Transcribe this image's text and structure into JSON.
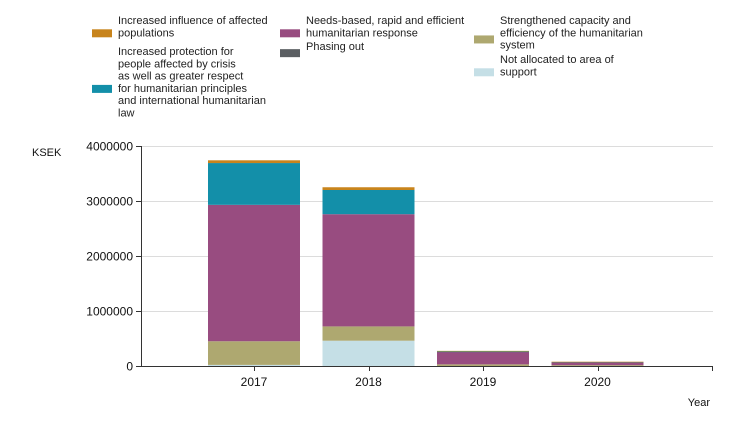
{
  "chart_data": {
    "type": "bar",
    "stacked": true,
    "categories": [
      "2017",
      "2018",
      "2019",
      "2020"
    ],
    "ylabel": "KSEK",
    "xlabel": "Year",
    "ylim": [
      0,
      4000000
    ],
    "yticks": [
      0,
      1000000,
      2000000,
      3000000,
      4000000
    ],
    "ytick_labels": [
      "0",
      "1000000",
      "2000000",
      "3000000",
      "4000000"
    ],
    "grid": true,
    "legend_position": "top",
    "series": [
      {
        "name": "Not allocated to area of support",
        "color": "#c5dfe6",
        "values": [
          20000,
          460000,
          0,
          0
        ]
      },
      {
        "name": "Strengthened capacity and efficiency of the humanitarian system",
        "color": "#aea870",
        "values": [
          430000,
          260000,
          30000,
          15000
        ]
      },
      {
        "name": "Phasing out",
        "color": "#5b5e62",
        "values": [
          0,
          0,
          0,
          0
        ]
      },
      {
        "name": "Needs-based, rapid and efficient humanitarian response",
        "color": "#984c80",
        "values": [
          2480000,
          2040000,
          225000,
          55000
        ]
      },
      {
        "name": "Increased protection for people affected by crisis as well as greater respect for humanitarian principles and international humanitarian law",
        "color": "#138fa9",
        "values": [
          760000,
          440000,
          8000,
          3000
        ]
      },
      {
        "name": "Increased influence of affected populations",
        "color": "#c8841c",
        "values": [
          50000,
          50000,
          12000,
          5000
        ]
      }
    ],
    "legend": [
      {
        "label_lines": [
          "Increased influence of affected",
          "populations"
        ],
        "color": "#c8841c"
      },
      {
        "label_lines": [
          "Increased protection for",
          "people affected by crisis",
          "as well as greater respect",
          "for humanitarian principles",
          "and international humanitarian",
          "law"
        ],
        "color": "#138fa9"
      },
      {
        "label_lines": [
          "Needs-based, rapid and efficient",
          "humanitarian response"
        ],
        "color": "#984c80"
      },
      {
        "label_lines": [
          "Phasing out"
        ],
        "color": "#5b5e62"
      },
      {
        "label_lines": [
          "Strengthened capacity and",
          "efficiency of the humanitarian",
          "system"
        ],
        "color": "#aea870"
      },
      {
        "label_lines": [
          "Not allocated to area of",
          "support"
        ],
        "color": "#c5dfe6"
      }
    ]
  }
}
